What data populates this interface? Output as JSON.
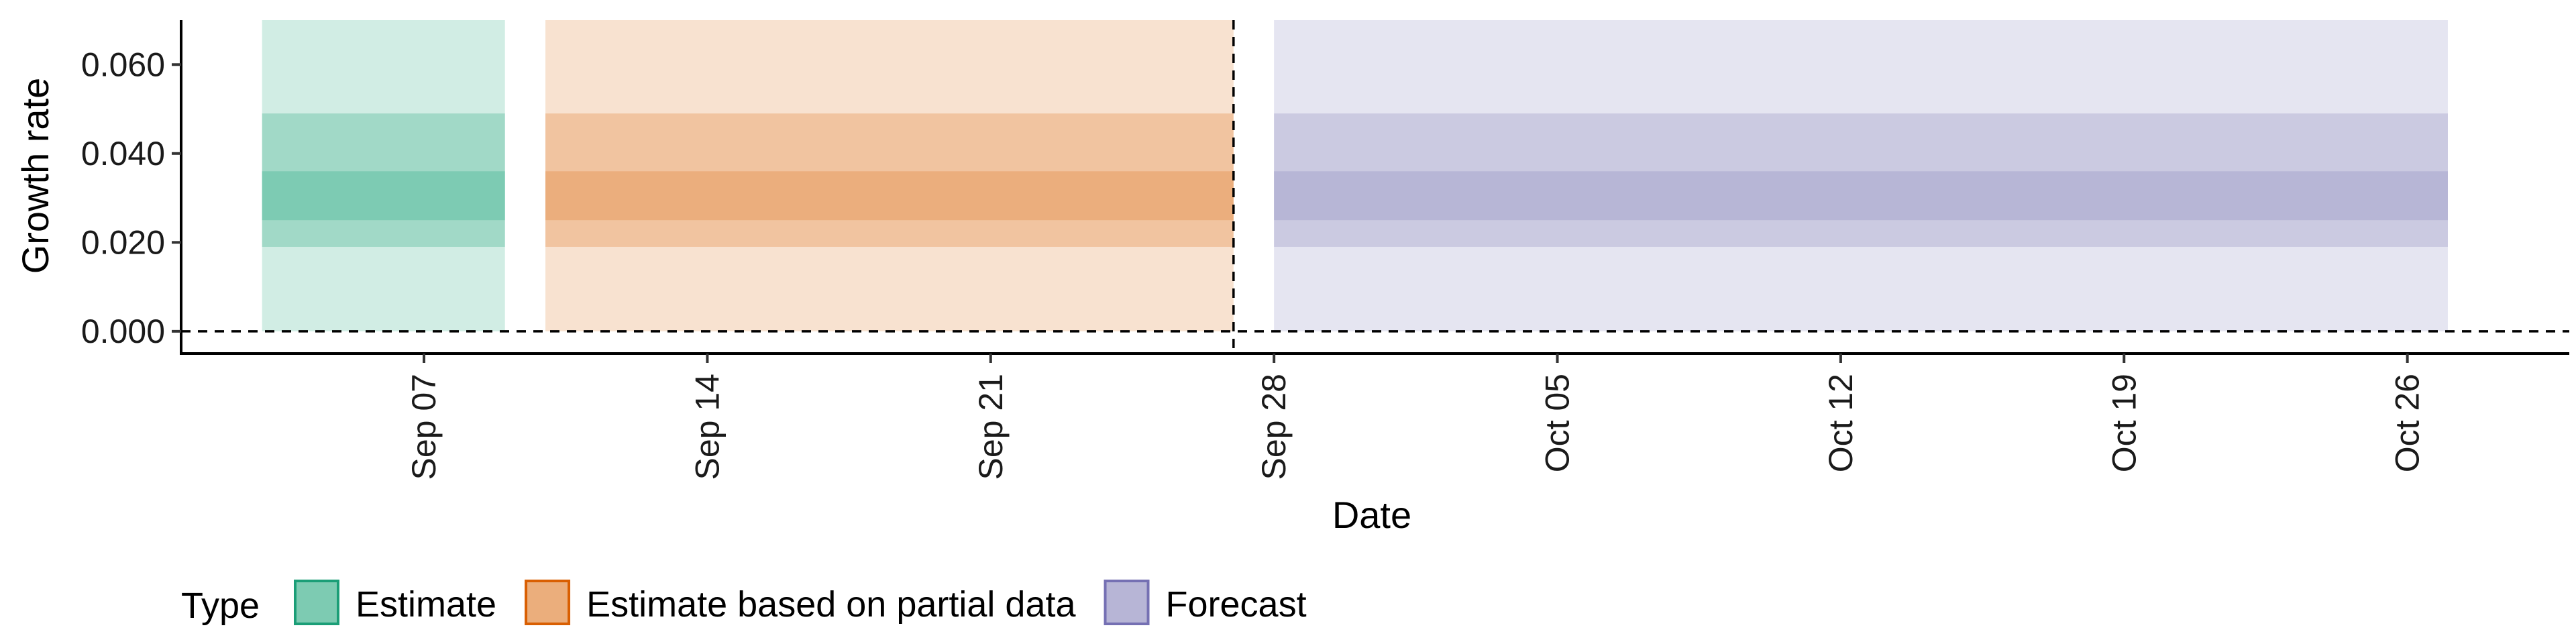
{
  "chart_data": {
    "type": "area",
    "title": "",
    "xlabel": "Date",
    "ylabel": "Growth rate",
    "x_axis": {
      "type": "date",
      "range": [
        "2020-09-01",
        "2020-10-30"
      ],
      "ticks": [
        {
          "date": "2020-09-07",
          "label": "Sep 07"
        },
        {
          "date": "2020-09-14",
          "label": "Sep 14"
        },
        {
          "date": "2020-09-21",
          "label": "Sep 21"
        },
        {
          "date": "2020-09-28",
          "label": "Sep 28"
        },
        {
          "date": "2020-10-05",
          "label": "Oct 05"
        },
        {
          "date": "2020-10-12",
          "label": "Oct 12"
        },
        {
          "date": "2020-10-19",
          "label": "Oct 19"
        },
        {
          "date": "2020-10-26",
          "label": "Oct 26"
        }
      ]
    },
    "y_axis": {
      "range": [
        -0.005,
        0.07
      ],
      "ticks": [
        {
          "value": 0.0,
          "label": "0.000"
        },
        {
          "value": 0.02,
          "label": "0.020"
        },
        {
          "value": 0.04,
          "label": "0.040"
        },
        {
          "value": 0.06,
          "label": "0.060"
        }
      ]
    },
    "grid": false,
    "reference_lines": [
      {
        "axis": "y",
        "value": 0.0,
        "style": "dashed"
      },
      {
        "axis": "x",
        "value": "2020-09-27",
        "style": "dashed"
      }
    ],
    "legend": {
      "title": "Type",
      "position": "bottom-left"
    },
    "series": [
      {
        "name": "Estimate",
        "color": "#1b9e77",
        "fill_color": "#66c2a5",
        "x_start": "2020-09-03",
        "x_end": "2020-09-09",
        "bands": {
          "outer": [
            0.0,
            0.07
          ],
          "middle": [
            0.019,
            0.049
          ],
          "inner": [
            0.025,
            0.036
          ]
        }
      },
      {
        "name": "Estimate based on partial data",
        "color": "#d95f02",
        "fill_color": "#e8a065",
        "x_start": "2020-09-10",
        "x_end": "2020-09-27",
        "bands": {
          "outer": [
            0.0,
            0.07
          ],
          "middle": [
            0.019,
            0.049
          ],
          "inner": [
            0.025,
            0.036
          ]
        }
      },
      {
        "name": "Forecast",
        "color": "#7570b3",
        "fill_color": "#aaa8cf",
        "x_start": "2020-09-28",
        "x_end": "2020-10-27",
        "bands": {
          "outer": [
            0.0,
            0.07
          ],
          "middle": [
            0.019,
            0.049
          ],
          "inner": [
            0.025,
            0.036
          ]
        }
      }
    ]
  }
}
